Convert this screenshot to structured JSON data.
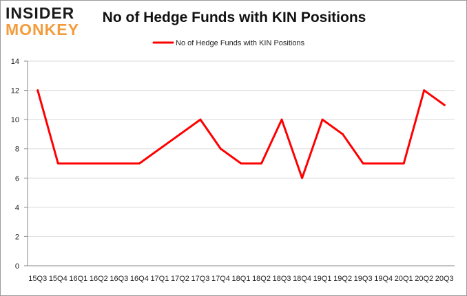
{
  "logo": {
    "line1": "INSIDER",
    "line2": "MONKEY",
    "dark_color": "#1a1a1a",
    "accent_color": "#f39c3c"
  },
  "chart_data": {
    "type": "line",
    "title": "No of Hedge Funds with KIN Positions",
    "xlabel": "",
    "ylabel": "",
    "ylim": [
      0,
      14
    ],
    "yticks": [
      0,
      2,
      4,
      6,
      8,
      10,
      12,
      14
    ],
    "grid": true,
    "legend_position": "top-center",
    "categories": [
      "15Q3",
      "15Q4",
      "16Q1",
      "16Q2",
      "16Q3",
      "16Q4",
      "17Q1",
      "17Q2",
      "17Q3",
      "17Q4",
      "18Q1",
      "18Q2",
      "18Q3",
      "18Q4",
      "19Q1",
      "19Q2",
      "19Q3",
      "19Q4",
      "20Q1",
      "20Q2",
      "20Q3"
    ],
    "series": [
      {
        "name": "No of Hedge Funds with KIN Positions",
        "color": "#ff0000",
        "values": [
          12,
          7,
          7,
          7,
          7,
          7,
          8,
          9,
          10,
          8,
          7,
          7,
          10,
          6,
          10,
          9,
          7,
          7,
          7,
          12,
          11
        ]
      }
    ]
  }
}
